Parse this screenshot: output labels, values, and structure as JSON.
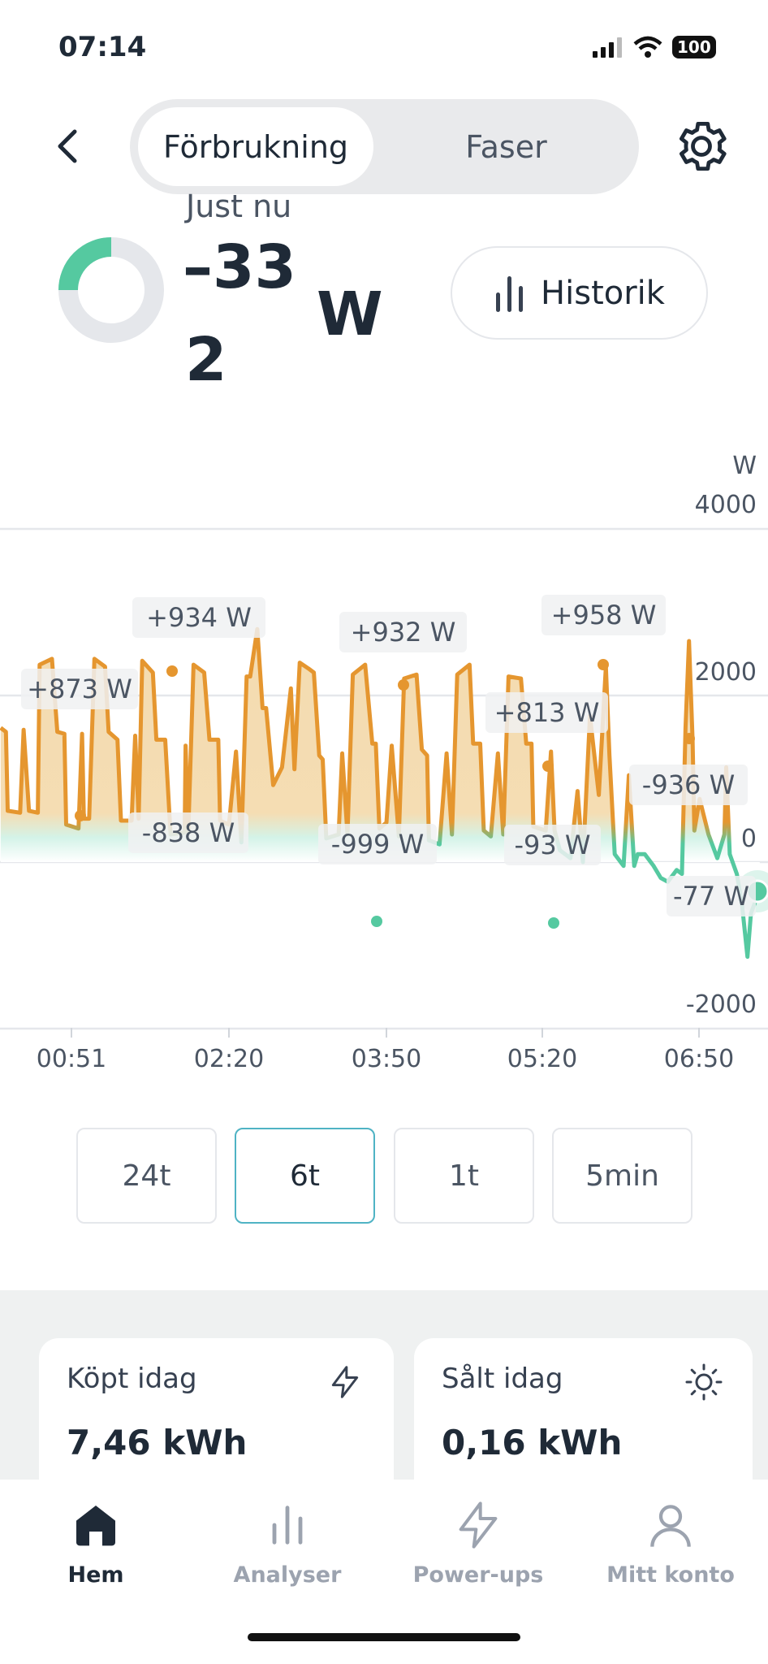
{
  "status_bar": {
    "time": "07:14",
    "battery": "100"
  },
  "header": {
    "segments": [
      "Förbrukning",
      "Faser"
    ],
    "selected": "Förbrukning"
  },
  "current": {
    "label": "Just nu",
    "value_line1": "–33",
    "value_line2": "2",
    "unit": "W",
    "history_button": "Historik"
  },
  "chart_data": {
    "type": "line",
    "unit_label": "W",
    "y_ticks": [
      "4000",
      "2000",
      "0",
      "-2000"
    ],
    "ylim": [
      -2000,
      4000
    ],
    "x_ticks": [
      "00:51",
      "02:20",
      "03:50",
      "05:20",
      "06:50"
    ],
    "annotations": [
      "+873 W",
      "+934 W",
      "+932 W",
      "+958 W",
      "+813 W",
      "-936 W",
      "-838 W",
      "-999 W",
      "-93 W",
      "-77 W"
    ],
    "colors": {
      "consumption": "#E5962F",
      "production": "#55C9A0"
    },
    "points_minutes_watts": [
      [
        11,
        1612
      ],
      [
        14,
        1564
      ],
      [
        15,
        616
      ],
      [
        22,
        592
      ],
      [
        24,
        1588
      ],
      [
        27,
        616
      ],
      [
        32,
        592
      ],
      [
        33,
        2370
      ],
      [
        40,
        2440
      ],
      [
        43,
        1564
      ],
      [
        47,
        1540
      ],
      [
        48,
        450
      ],
      [
        55,
        403
      ],
      [
        57,
        1540
      ],
      [
        58,
        521
      ],
      [
        61,
        521
      ],
      [
        64,
        2440
      ],
      [
        70,
        2346
      ],
      [
        72,
        1564
      ],
      [
        77,
        1469
      ],
      [
        79,
        498
      ],
      [
        85,
        498
      ],
      [
        87,
        1517
      ],
      [
        89,
        521
      ],
      [
        91,
        2417
      ],
      [
        97,
        2275
      ],
      [
        99,
        1469
      ],
      [
        104,
        1469
      ],
      [
        107,
        332
      ],
      [
        115,
        355
      ],
      [
        115.5,
        1398
      ],
      [
        117,
        355
      ],
      [
        120,
        2370
      ],
      [
        126,
        2275
      ],
      [
        129,
        1469
      ],
      [
        134,
        1469
      ],
      [
        135,
        498
      ],
      [
        140,
        450
      ],
      [
        144,
        1327
      ],
      [
        147,
        237
      ],
      [
        150,
        2228
      ],
      [
        152,
        2228
      ],
      [
        156,
        2797
      ],
      [
        159,
        1849
      ],
      [
        161,
        1849
      ],
      [
        165,
        924
      ],
      [
        170,
        1138
      ],
      [
        175,
        2086
      ],
      [
        177,
        1114
      ],
      [
        180,
        2394
      ],
      [
        185,
        2323
      ],
      [
        188,
        2275
      ],
      [
        191,
        1280
      ],
      [
        193,
        1232
      ],
      [
        195,
        284
      ],
      [
        202,
        332
      ],
      [
        204,
        1304
      ],
      [
        207,
        332
      ],
      [
        210,
        2252
      ],
      [
        217,
        2370
      ],
      [
        221,
        1422
      ],
      [
        223,
        1422
      ],
      [
        225,
        403
      ],
      [
        229,
        474
      ],
      [
        232,
        1398
      ],
      [
        236,
        308
      ],
      [
        239,
        2204
      ],
      [
        246,
        2252
      ],
      [
        249,
        1351
      ],
      [
        252,
        1280
      ],
      [
        253,
        261
      ],
      [
        259,
        213
      ],
      [
        263,
        1304
      ],
      [
        266,
        332
      ],
      [
        269,
        2252
      ],
      [
        276,
        2370
      ],
      [
        278,
        1422
      ],
      [
        282,
        1422
      ],
      [
        284,
        379
      ],
      [
        288,
        308
      ],
      [
        292,
        1304
      ],
      [
        295,
        332
      ],
      [
        298,
        2228
      ],
      [
        305,
        2204
      ],
      [
        308,
        1422
      ],
      [
        311,
        1422
      ],
      [
        312,
        427
      ],
      [
        319,
        379
      ],
      [
        322,
        1327
      ],
      [
        324,
        379
      ],
      [
        327,
        142
      ],
      [
        333,
        47
      ],
      [
        337,
        853
      ],
      [
        340,
        0
      ],
      [
        344,
        1754
      ],
      [
        349,
        806
      ],
      [
        353,
        2346
      ],
      [
        355,
        1280
      ],
      [
        358,
        95
      ],
      [
        363,
        -47
      ],
      [
        366,
        1043
      ],
      [
        369,
        -47
      ],
      [
        371,
        95
      ],
      [
        375,
        95
      ],
      [
        380,
        -47
      ],
      [
        384,
        -190
      ],
      [
        388,
        -237
      ],
      [
        393,
        -95
      ],
      [
        396,
        -142
      ],
      [
        398,
        1612
      ],
      [
        400,
        2654
      ],
      [
        402,
        1469
      ],
      [
        403,
        379
      ],
      [
        406,
        758
      ],
      [
        411,
        332
      ],
      [
        416,
        47
      ],
      [
        420,
        332
      ],
      [
        421,
        1138
      ],
      [
        423,
        95
      ],
      [
        427,
        -142
      ],
      [
        430,
        -521
      ],
      [
        433,
        -1138
      ],
      [
        435,
        -616
      ],
      [
        440,
        -332
      ]
    ]
  },
  "ranges": {
    "options": [
      "24t",
      "6t",
      "1t",
      "5min"
    ],
    "selected": "6t"
  },
  "cards": [
    {
      "label": "Köpt idag",
      "value": "7,46 kWh",
      "icon": "bolt-icon"
    },
    {
      "label": "Sålt idag",
      "value": "0,16 kWh",
      "icon": "sun-icon"
    }
  ],
  "nav": {
    "items": [
      "Hem",
      "Analyser",
      "Power-ups",
      "Mitt konto"
    ],
    "active": "Hem"
  }
}
